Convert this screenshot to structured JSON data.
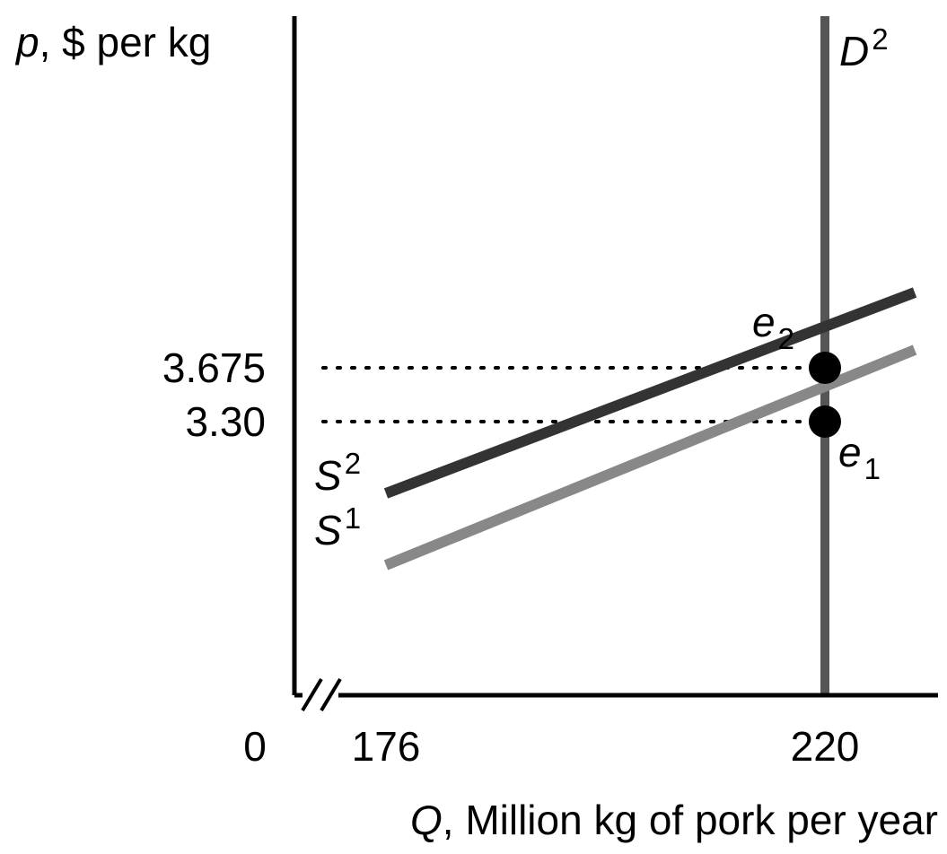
{
  "chart_data": {
    "type": "line",
    "xlabel": {
      "var": "Q",
      "rest": ", Million kg of pork per year"
    },
    "ylabel": {
      "var": "p",
      "rest": ", $ per kg"
    },
    "x_origin_label": "0",
    "x_axis_break": true,
    "x_ticks": [
      {
        "value": 176,
        "label": "176"
      },
      {
        "value": 220,
        "label": "220"
      }
    ],
    "y_ticks": [
      {
        "value": 3.675,
        "label": "3.675"
      },
      {
        "value": 3.3,
        "label": "3.30"
      }
    ],
    "xlim": [
      169,
      229
    ],
    "ylim": [
      0,
      6.5
    ],
    "colors": {
      "axis": "#000000",
      "demand": "#555555",
      "supply_1": "#888888",
      "supply_2": "#333333",
      "point": "#000000"
    },
    "series": [
      {
        "id": "D",
        "name": {
          "base": "D",
          "sup": "2"
        },
        "kind": "vertical",
        "x": [
          220,
          220
        ],
        "y": [
          0,
          6.5
        ]
      },
      {
        "id": "S1",
        "name": {
          "base": "S",
          "sup": "1"
        },
        "x": [
          176,
          229
        ],
        "y": [
          2.3,
          3.8
        ]
      },
      {
        "id": "S2",
        "name": {
          "base": "S",
          "sup": "2"
        },
        "x": [
          176,
          229
        ],
        "y": [
          2.8,
          4.2
        ]
      }
    ],
    "points": [
      {
        "id": "e1",
        "name": {
          "base": "e",
          "sub": "1"
        },
        "x": 220,
        "y": 3.3
      },
      {
        "id": "e2",
        "name": {
          "base": "e",
          "sub": "2"
        },
        "x": 220,
        "y": 3.675
      }
    ],
    "guides": [
      {
        "x_from": 169,
        "x_to": 220,
        "y": 3.675,
        "style": "dotted"
      },
      {
        "x_from": 169,
        "x_to": 220,
        "y": 3.3,
        "style": "dotted"
      }
    ]
  }
}
